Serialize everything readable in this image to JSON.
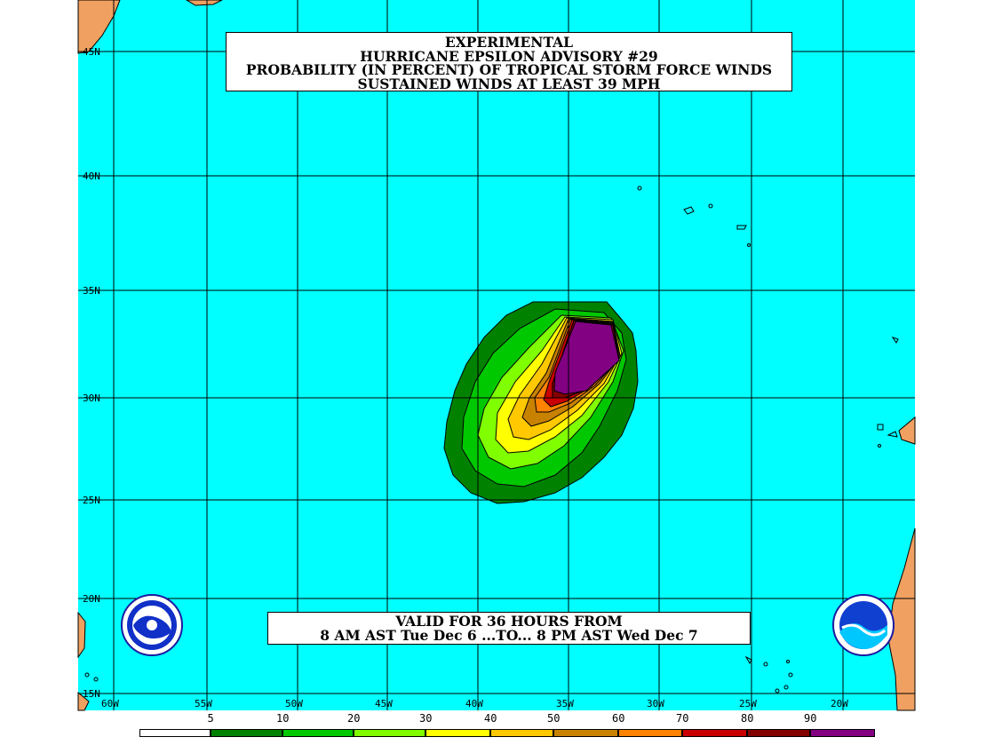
{
  "title": {
    "lines": [
      "EXPERIMENTAL",
      "HURRICANE EPSILON ADVISORY #29",
      "PROBABILITY (IN PERCENT) OF TROPICAL STORM FORCE WINDS",
      "SUSTAINED WINDS AT LEAST 39 MPH"
    ]
  },
  "valid": {
    "line1": "VALID FOR 36 HOURS FROM",
    "line2": "8 AM AST Tue Dec 6 ...TO... 8 PM AST Wed Dec 7"
  },
  "lat_labels": [
    "45N",
    "40N",
    "35N",
    "30N",
    "25N",
    "20N",
    "15N"
  ],
  "lon_labels": [
    "60W",
    "55W",
    "50W",
    "45W",
    "40W",
    "35W",
    "30W",
    "25W",
    "20W"
  ],
  "legend": {
    "thresholds": [
      "5",
      "10",
      "20",
      "30",
      "40",
      "50",
      "60",
      "70",
      "80",
      "90"
    ],
    "colors": [
      "#ffffff",
      "#008200",
      "#00c800",
      "#80ff00",
      "#ffff00",
      "#ffc800",
      "#c88200",
      "#ff8200",
      "#c80000",
      "#820000",
      "#820082"
    ]
  },
  "colors": {
    "ocean": "#00ffff",
    "land": "#f0a060",
    "grid": "#000000"
  },
  "logos": {
    "left": "nws-logo",
    "right": "noaa-logo"
  }
}
